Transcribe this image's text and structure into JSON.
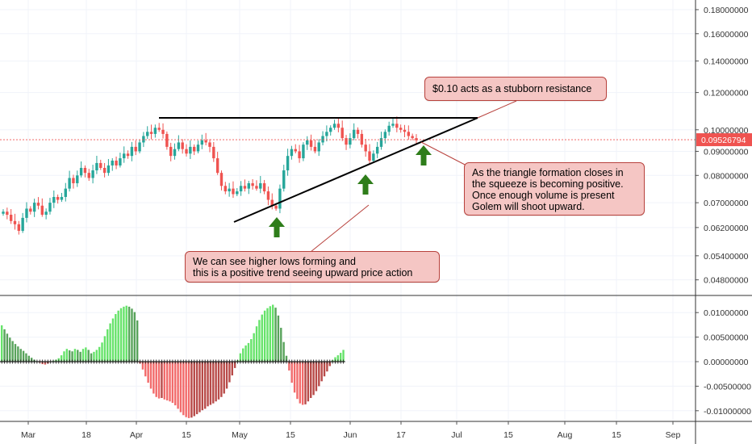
{
  "chart_data": [
    {
      "type": "candlestick",
      "role": "price",
      "title": "",
      "x_ticks": [
        "Mar",
        "18",
        "Apr",
        "15",
        "May",
        "15",
        "Jun",
        "17",
        "Jul",
        "15",
        "Aug",
        "15",
        "Sep"
      ],
      "y_ticks": [
        "0.18000000",
        "0.16000000",
        "0.14000000",
        "0.12000000",
        "0.10000000",
        "0.09000000",
        "0.08000000",
        "0.07000000",
        "0.06200000",
        "0.05400000",
        "0.04800000"
      ],
      "ylim": [
        0.045,
        0.185
      ],
      "y_scale": "log",
      "current_price": "0.09526794",
      "close": [
        0.067,
        0.066,
        0.064,
        0.063,
        0.061,
        0.065,
        0.068,
        0.067,
        0.07,
        0.069,
        0.066,
        0.067,
        0.07,
        0.072,
        0.071,
        0.072,
        0.075,
        0.079,
        0.077,
        0.08,
        0.083,
        0.081,
        0.079,
        0.082,
        0.085,
        0.083,
        0.081,
        0.084,
        0.086,
        0.084,
        0.087,
        0.089,
        0.088,
        0.092,
        0.09,
        0.094,
        0.097,
        0.099,
        0.098,
        0.101,
        0.1,
        0.098,
        0.092,
        0.088,
        0.091,
        0.094,
        0.091,
        0.089,
        0.092,
        0.09,
        0.093,
        0.095,
        0.094,
        0.092,
        0.087,
        0.081,
        0.076,
        0.074,
        0.075,
        0.073,
        0.074,
        0.076,
        0.075,
        0.077,
        0.076,
        0.075,
        0.077,
        0.074,
        0.071,
        0.069,
        0.068,
        0.075,
        0.082,
        0.088,
        0.091,
        0.09,
        0.087,
        0.093,
        0.095,
        0.092,
        0.09,
        0.094,
        0.097,
        0.099,
        0.101,
        0.103,
        0.101,
        0.096,
        0.093,
        0.096,
        0.1,
        0.098,
        0.093,
        0.09,
        0.086,
        0.089,
        0.092,
        0.096,
        0.099,
        0.102,
        0.103,
        0.101,
        0.1,
        0.099,
        0.097,
        0.096,
        0.095
      ],
      "annotations": [
        {
          "type": "horizontal-line",
          "value": 0.104
        },
        {
          "type": "trendline",
          "from": [
            0.0615,
            "early May"
          ],
          "to": [
            0.104,
            "end of June"
          ]
        },
        {
          "type": "arrow-up",
          "count": 3
        }
      ]
    },
    {
      "type": "bar",
      "role": "oscillator",
      "y_ticks": [
        "0.01000000",
        "0.00500000",
        "0.00000000",
        "-0.00500000",
        "-0.01000000"
      ],
      "ylim": [
        -0.0125,
        0.0125
      ],
      "values": [
        0.0074,
        0.0066,
        0.0057,
        0.0049,
        0.0042,
        0.0036,
        0.0031,
        0.0026,
        0.0022,
        0.0017,
        0.0012,
        0.0008,
        0.0004,
        0.0001,
        -0.0002,
        -0.0005,
        -0.0006,
        -0.0004,
        -0.0001,
        0.0002,
        0.0004,
        0.0007,
        0.0013,
        0.0021,
        0.0026,
        0.0023,
        0.0021,
        0.0026,
        0.0024,
        0.002,
        0.0026,
        0.0029,
        0.0024,
        0.0017,
        0.002,
        0.0024,
        0.003,
        0.0039,
        0.0052,
        0.0066,
        0.0078,
        0.0088,
        0.0097,
        0.0104,
        0.0109,
        0.0112,
        0.0114,
        0.0112,
        0.0108,
        0.0101,
        0.0084,
        -0.0004,
        -0.0016,
        -0.003,
        -0.0043,
        -0.0055,
        -0.0065,
        -0.0072,
        -0.0075,
        -0.0074,
        -0.0077,
        -0.0079,
        -0.0081,
        -0.0084,
        -0.0089,
        -0.0096,
        -0.0103,
        -0.0109,
        -0.0113,
        -0.0115,
        -0.0114,
        -0.0111,
        -0.0107,
        -0.0103,
        -0.0099,
        -0.0096,
        -0.0091,
        -0.0088,
        -0.0085,
        -0.0081,
        -0.0077,
        -0.0072,
        -0.0065,
        -0.0055,
        -0.0042,
        -0.0028,
        -0.0013,
        0.0003,
        0.0017,
        0.0027,
        0.0033,
        0.0038,
        0.0046,
        0.0058,
        0.0072,
        0.0085,
        0.0096,
        0.0104,
        0.0109,
        0.0113,
        0.0116,
        0.011,
        0.0094,
        0.0069,
        0.004,
        0.0012,
        -0.0018,
        -0.0043,
        -0.0063,
        -0.0076,
        -0.0085,
        -0.0088,
        -0.0087,
        -0.0081,
        -0.0074,
        -0.0068,
        -0.006,
        -0.005,
        -0.004,
        -0.003,
        -0.002,
        -0.0009,
        0.0003,
        0.0009,
        0.0013,
        0.0018,
        0.0024
      ]
    }
  ],
  "annotations": {
    "resistance": "$0.10 acts as a stubborn resistance",
    "squeeze": [
      "As the triangle formation closes in",
      "the squeeze is becoming positive.",
      "Once enough volume is present",
      "Golem will shoot upward."
    ],
    "higher_lows": [
      "We can see higher lows forming and",
      "this is a positive trend seeing upward price action"
    ]
  },
  "colors": {
    "up": "#26a69a",
    "down": "#ef5350",
    "hist_bright_green": "#66e36a",
    "hist_dark_green": "#58a35b",
    "hist_bright_red": "#f26b6b",
    "hist_dark_red": "#b84a48",
    "arrow": "#2e7d1a",
    "price_line": "#ef5350",
    "note_bg": "#f5c6c4",
    "note_border": "#b8423d"
  }
}
